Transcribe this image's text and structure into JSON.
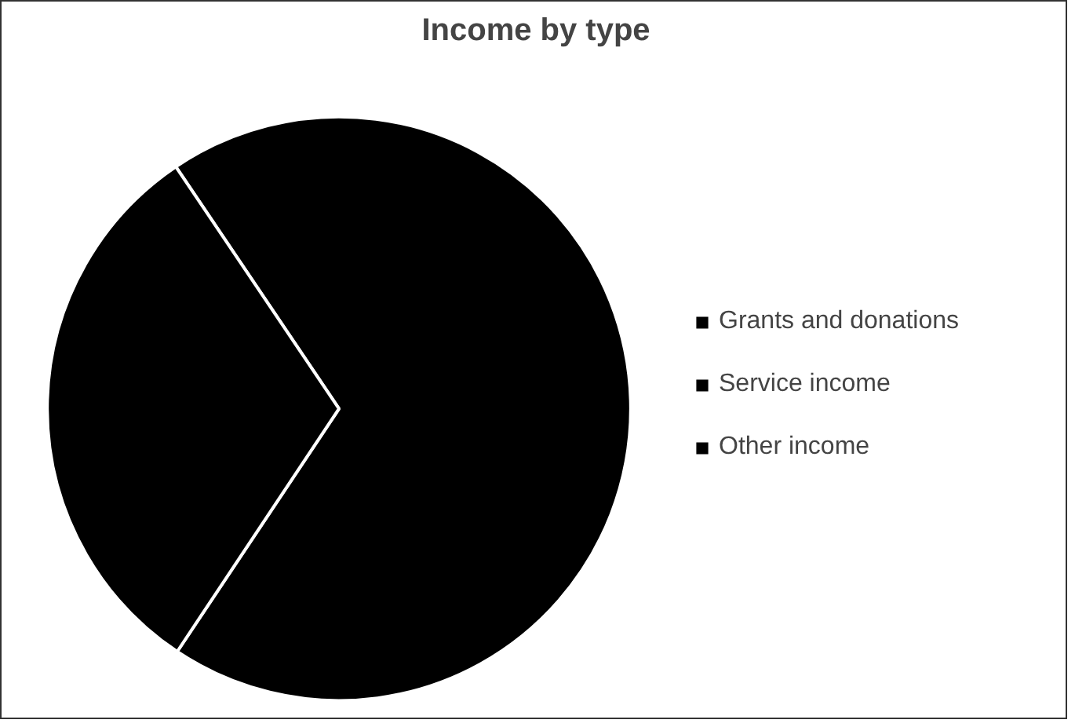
{
  "chart_data": {
    "type": "pie",
    "title": "Income by type",
    "categories": [
      "Grants and donations",
      "Service income",
      "Other income"
    ],
    "values": [
      68.8,
      31.2,
      0
    ],
    "colors": [
      "#000000",
      "#000000",
      "#000000"
    ],
    "legend": "right"
  }
}
